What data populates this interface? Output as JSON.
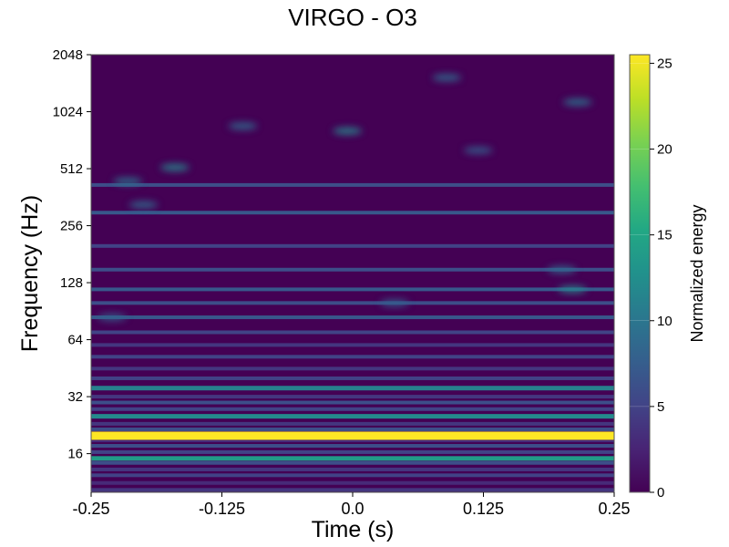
{
  "chart_data": {
    "type": "heatmap",
    "title": "VIRGO - O3",
    "xlabel": "Time (s)",
    "ylabel": "Frequency (Hz)",
    "x_ticks": [
      "-0.25",
      "-0.125",
      "0.0",
      "0.125",
      "0.25"
    ],
    "x_tick_values": [
      -0.25,
      -0.125,
      0.0,
      0.125,
      0.25
    ],
    "xlim": [
      -0.25,
      0.25
    ],
    "y_scale": "log2",
    "y_ticks": [
      "16",
      "32",
      "64",
      "128",
      "256",
      "512",
      "1024",
      "2048"
    ],
    "y_tick_values": [
      16,
      32,
      64,
      128,
      256,
      512,
      1024,
      2048
    ],
    "ylim": [
      10,
      2048
    ],
    "colorbar": {
      "label": "Normalized energy",
      "ticks": [
        "0",
        "5",
        "10",
        "15",
        "20",
        "25"
      ],
      "tick_values": [
        0,
        5,
        10,
        15,
        20,
        25
      ],
      "range": [
        0,
        25.5
      ],
      "colormap": "viridis"
    },
    "bands": [
      {
        "freq": 10.3,
        "energy": 4
      },
      {
        "freq": 11.2,
        "energy": 3
      },
      {
        "freq": 12.3,
        "energy": 5
      },
      {
        "freq": 13.2,
        "energy": 4
      },
      {
        "freq": 14.3,
        "energy": 6
      },
      {
        "freq": 15.1,
        "energy": 14
      },
      {
        "freq": 16.3,
        "energy": 5
      },
      {
        "freq": 17.6,
        "energy": 6
      },
      {
        "freq": 18.8,
        "energy": 3
      },
      {
        "freq": 19.9,
        "energy": 25.5
      },
      {
        "freq": 21.5,
        "energy": 6
      },
      {
        "freq": 23.0,
        "energy": 4
      },
      {
        "freq": 25.2,
        "energy": 12
      },
      {
        "freq": 27.5,
        "energy": 5
      },
      {
        "freq": 29.8,
        "energy": 6
      },
      {
        "freq": 32.0,
        "energy": 4
      },
      {
        "freq": 35.5,
        "energy": 11
      },
      {
        "freq": 40.0,
        "energy": 5
      },
      {
        "freq": 45.0,
        "energy": 4
      },
      {
        "freq": 52.0,
        "energy": 5
      },
      {
        "freq": 60.0,
        "energy": 4
      },
      {
        "freq": 70.0,
        "energy": 5
      },
      {
        "freq": 84.0,
        "energy": 7
      },
      {
        "freq": 100.0,
        "energy": 6
      },
      {
        "freq": 118.0,
        "energy": 7
      },
      {
        "freq": 150.0,
        "energy": 6
      },
      {
        "freq": 200.0,
        "energy": 5
      },
      {
        "freq": 300.0,
        "energy": 7
      },
      {
        "freq": 420.0,
        "energy": 6
      }
    ],
    "blobs": [
      {
        "time": -0.215,
        "freq": 440,
        "energy": 10
      },
      {
        "time": -0.17,
        "freq": 520,
        "energy": 12
      },
      {
        "time": -0.105,
        "freq": 860,
        "energy": 9
      },
      {
        "time": -0.005,
        "freq": 810,
        "energy": 12
      },
      {
        "time": 0.09,
        "freq": 1550,
        "energy": 9
      },
      {
        "time": 0.215,
        "freq": 1150,
        "energy": 10
      },
      {
        "time": 0.21,
        "freq": 118,
        "energy": 12
      },
      {
        "time": 0.2,
        "freq": 150,
        "energy": 9
      },
      {
        "time": 0.04,
        "freq": 100,
        "energy": 8
      },
      {
        "time": -0.23,
        "freq": 84,
        "energy": 8
      },
      {
        "time": 0.12,
        "freq": 640,
        "energy": 8
      },
      {
        "time": -0.2,
        "freq": 330,
        "energy": 9
      }
    ]
  }
}
